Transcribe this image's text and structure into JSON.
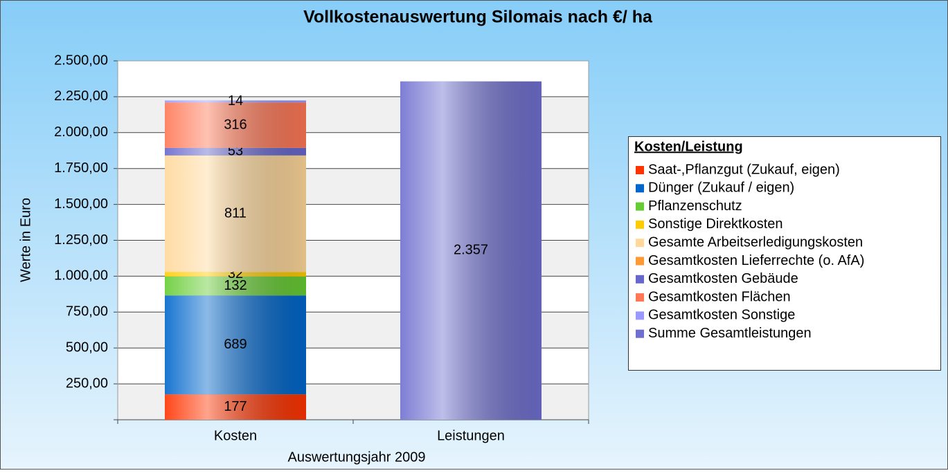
{
  "chart_data": {
    "type": "stacked_bar",
    "title": "Vollkostenauswertung Silomais nach €/ ha",
    "ylabel": "Werte in Euro",
    "xlabel": "Auswertungsjahr  2009",
    "legend_title": "Kosten/Leistung",
    "legend_position": "right",
    "grid": true,
    "categories": [
      "Kosten",
      "Leistungen"
    ],
    "ylim": [
      0,
      2500
    ],
    "yticks": [
      {
        "value": 250,
        "label": "250,00"
      },
      {
        "value": 500,
        "label": "500,00"
      },
      {
        "value": 750,
        "label": "750,00"
      },
      {
        "value": 1000,
        "label": "1.000,00"
      },
      {
        "value": 1250,
        "label": "1.250,00"
      },
      {
        "value": 1500,
        "label": "1.500,00"
      },
      {
        "value": 1750,
        "label": "1.750,00"
      },
      {
        "value": 2000,
        "label": "2.000,00"
      },
      {
        "value": 2250,
        "label": "2.250,00"
      },
      {
        "value": 2500,
        "label": "2.500,00"
      }
    ],
    "series": [
      {
        "name": "Saat-,Pflanzgut (Zukauf, eigen)",
        "color": "#ff3300",
        "values": [
          177,
          null
        ]
      },
      {
        "name": "Dünger (Zukauf / eigen)",
        "color": "#0066cc",
        "values": [
          689,
          null
        ]
      },
      {
        "name": "Pflanzenschutz",
        "color": "#66cc33",
        "values": [
          132,
          null
        ]
      },
      {
        "name": "Sonstige Direktkosten",
        "color": "#ffcc00",
        "values": [
          32,
          null
        ]
      },
      {
        "name": "Gesamte Arbeitserledigungskosten",
        "color": "#ffd89a",
        "values": [
          811,
          null
        ]
      },
      {
        "name": "Gesamtkosten Lieferrechte (o. AfA)",
        "color": "#ff9933",
        "values": [
          null,
          null
        ]
      },
      {
        "name": "Gesamtkosten Gebäude",
        "color": "#6666cc",
        "values": [
          53,
          null
        ]
      },
      {
        "name": "Gesamtkosten Flächen",
        "color": "#ff7755",
        "values": [
          316,
          null
        ]
      },
      {
        "name": "Gesamtkosten Sonstige",
        "color": "#9999ff",
        "values": [
          14,
          null
        ]
      },
      {
        "name": "Summe Gesamtleistungen",
        "color": "#6f6fd0",
        "values": [
          null,
          2357
        ],
        "value_labels": [
          null,
          "2.357"
        ]
      }
    ]
  }
}
